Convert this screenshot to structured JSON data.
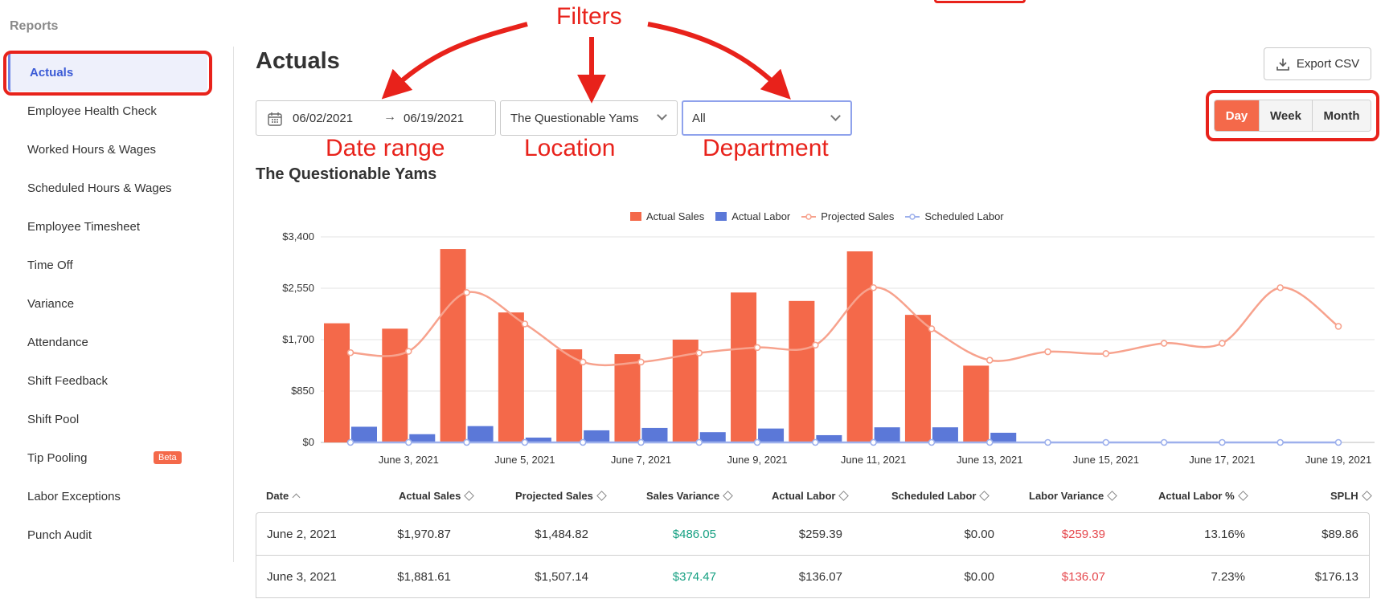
{
  "sidebar": {
    "heading": "Reports",
    "items": [
      {
        "label": "Actuals",
        "active": true
      },
      {
        "label": "Employee Health Check"
      },
      {
        "label": "Worked Hours & Wages"
      },
      {
        "label": "Scheduled Hours & Wages"
      },
      {
        "label": "Employee Timesheet"
      },
      {
        "label": "Time Off"
      },
      {
        "label": "Variance"
      },
      {
        "label": "Attendance"
      },
      {
        "label": "Shift Feedback"
      },
      {
        "label": "Shift Pool"
      },
      {
        "label": "Tip Pooling",
        "badge": "Beta"
      },
      {
        "label": "Labor Exceptions"
      },
      {
        "label": "Punch Audit"
      }
    ]
  },
  "header": {
    "title": "Actuals",
    "export_label": "Export CSV",
    "periods": [
      "Day",
      "Week",
      "Month"
    ],
    "active_period": "Day"
  },
  "filters": {
    "date_start": "06/02/2021",
    "date_end": "06/19/2021",
    "location": "The Questionable Yams",
    "department": "All"
  },
  "annotations": {
    "filters": "Filters",
    "date_range": "Date range",
    "location": "Location",
    "department": "Department"
  },
  "section_title": "The Questionable Yams",
  "colors": {
    "accent": "#f4694a",
    "labor": "#5b78d8",
    "projected": "#f7a28d",
    "scheduled": "#9db0ec",
    "annotation": "#e8221b"
  },
  "chart_data": {
    "type": "bar",
    "x": [
      "June 2, 2021",
      "June 3, 2021",
      "June 4, 2021",
      "June 5, 2021",
      "June 6, 2021",
      "June 7, 2021",
      "June 8, 2021",
      "June 9, 2021",
      "June 10, 2021",
      "June 11, 2021",
      "June 12, 2021",
      "June 13, 2021",
      "June 14, 2021",
      "June 15, 2021",
      "June 16, 2021",
      "June 17, 2021",
      "June 18, 2021",
      "June 19, 2021"
    ],
    "tick_labels": [
      "June 3, 2021",
      "June 5, 2021",
      "June 7, 2021",
      "June 9, 2021",
      "June 11, 2021",
      "June 13, 2021",
      "June 15, 2021",
      "June 17, 2021",
      "June 19, 2021"
    ],
    "y_ticks": [
      "$0",
      "$850",
      "$1,700",
      "$2,550",
      "$3,400"
    ],
    "ylim": [
      0,
      3400
    ],
    "legend_position": "top-center",
    "grid": true,
    "series": [
      {
        "name": "Actual Sales",
        "kind": "bar",
        "color": "#f4694a",
        "values": [
          1970.87,
          1881.61,
          3200,
          2150,
          1540,
          1460,
          1700,
          2480,
          2340,
          3160,
          2110,
          1270,
          null,
          null,
          null,
          null,
          null,
          null
        ]
      },
      {
        "name": "Actual Labor",
        "kind": "bar",
        "color": "#5b78d8",
        "values": [
          259.39,
          136.07,
          270,
          80,
          200,
          240,
          170,
          230,
          120,
          250,
          250,
          160,
          null,
          null,
          null,
          null,
          null,
          null
        ]
      },
      {
        "name": "Projected Sales",
        "kind": "line",
        "color": "#f7a28d",
        "values": [
          1484.82,
          1507.14,
          2480,
          1960,
          1330,
          1330,
          1480,
          1570,
          1610,
          2560,
          1880,
          1360,
          1500,
          1470,
          1640,
          1640,
          2560,
          1920
        ]
      },
      {
        "name": "Scheduled Labor",
        "kind": "line",
        "color": "#9db0ec",
        "values": [
          0,
          0,
          0,
          0,
          0,
          0,
          0,
          0,
          0,
          0,
          0,
          0,
          0,
          0,
          0,
          0,
          0,
          0
        ]
      }
    ]
  },
  "table": {
    "columns": [
      "Date",
      "Actual Sales",
      "Projected Sales",
      "Sales Variance",
      "Actual Labor",
      "Scheduled Labor",
      "Labor Variance",
      "Actual Labor %",
      "SPLH"
    ],
    "rows": [
      [
        "June 2, 2021",
        "$1,970.87",
        "$1,484.82",
        "$486.05",
        "$259.39",
        "$0.00",
        "$259.39",
        "13.16%",
        "$89.86"
      ],
      [
        "June 3, 2021",
        "$1,881.61",
        "$1,507.14",
        "$374.47",
        "$136.07",
        "$0.00",
        "$136.07",
        "7.23%",
        "$176.13"
      ]
    ]
  }
}
